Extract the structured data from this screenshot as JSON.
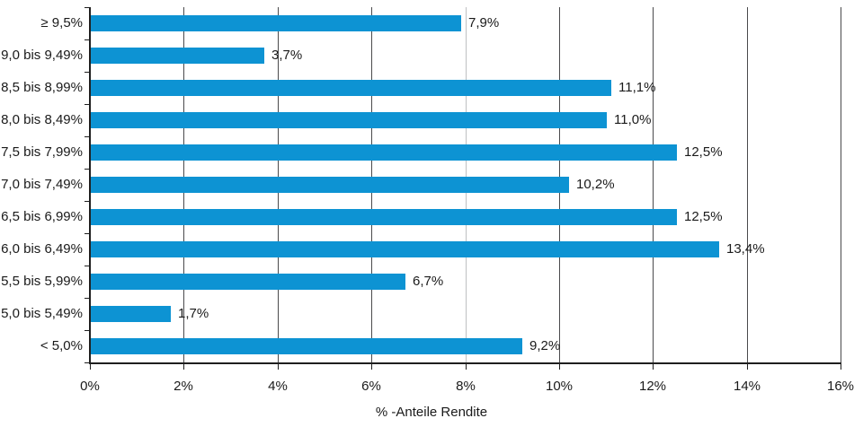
{
  "chart_data": {
    "type": "bar",
    "orientation": "horizontal",
    "title": "",
    "xlabel": "% -Anteile Rendite",
    "ylabel": "",
    "xlim": [
      0,
      16
    ],
    "x_tick_step": 2,
    "x_tick_labels": [
      "0%",
      "2%",
      "4%",
      "6%",
      "8%",
      "10%",
      "12%",
      "14%",
      "16%"
    ],
    "categories": [
      "≥ 9,5%",
      "9,0 bis 9,49%",
      "8,5 bis 8,99%",
      "8,0 bis 8,49%",
      "7,5 bis 7,99%",
      "7,0 bis 7,49%",
      "6,5 bis 6,99%",
      "6,0 bis 6,49%",
      "5,5 bis 5,99%",
      "5,0 bis 5,49%",
      "< 5,0%"
    ],
    "values": [
      7.9,
      3.7,
      11.1,
      11.0,
      12.5,
      10.2,
      12.5,
      13.4,
      6.7,
      1.7,
      9.2
    ],
    "value_labels": [
      "7,9%",
      "3,7%",
      "11,1%",
      "11,0%",
      "12,5%",
      "10,2%",
      "12,5%",
      "13,4%",
      "6,7%",
      "1,7%",
      "9,2%"
    ],
    "grid": "vertical",
    "legend": "none",
    "light_gridline_at_value": 8,
    "colors": {
      "bar": "#0d93d3",
      "gridline": "#4a4a4c",
      "gridline_light": "#bfc0c2",
      "axis": "#1f1f1f",
      "text": "#1a1a1a",
      "background": "#ffffff"
    }
  }
}
